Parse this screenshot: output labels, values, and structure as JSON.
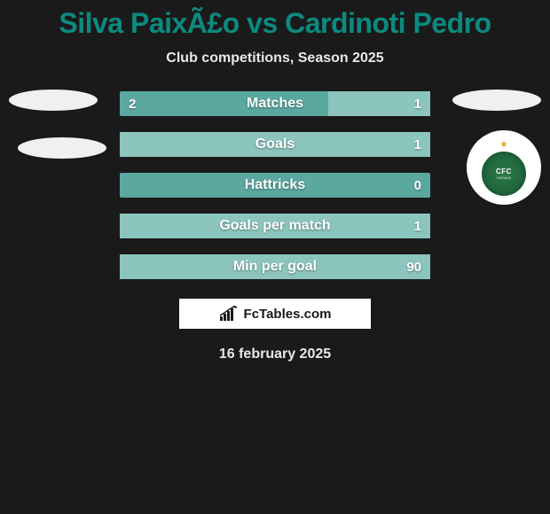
{
  "header": {
    "title": "Silva PaixÃ£o vs Cardinoti Pedro",
    "subtitle": "Club competitions, Season 2025"
  },
  "colors": {
    "page_bg": "#1a1a1a",
    "title_color": "#0c8a7f",
    "text_light": "#e8e8e8",
    "bar_left": "#5aa89f",
    "bar_right": "#8cc5bd",
    "badge_bg": "#f0f0f0",
    "club_green_outer": "#1a5c35",
    "club_green_inner": "#2d7a4a",
    "star_color": "#d4a817"
  },
  "club_badge": {
    "text_top": "CFC",
    "text_bottom": "PARANÁ"
  },
  "stats": {
    "rows": [
      {
        "label": "Matches",
        "left": "2",
        "right": "1",
        "right_width_pct": 33
      },
      {
        "label": "Goals",
        "left": "",
        "right": "1",
        "right_width_pct": 100
      },
      {
        "label": "Hattricks",
        "left": "",
        "right": "0",
        "right_width_pct": 0
      },
      {
        "label": "Goals per match",
        "left": "",
        "right": "1",
        "right_width_pct": 100
      },
      {
        "label": "Min per goal",
        "left": "",
        "right": "90",
        "right_width_pct": 100
      }
    ]
  },
  "footer": {
    "site": "FcTables.com",
    "date": "16 february 2025"
  }
}
